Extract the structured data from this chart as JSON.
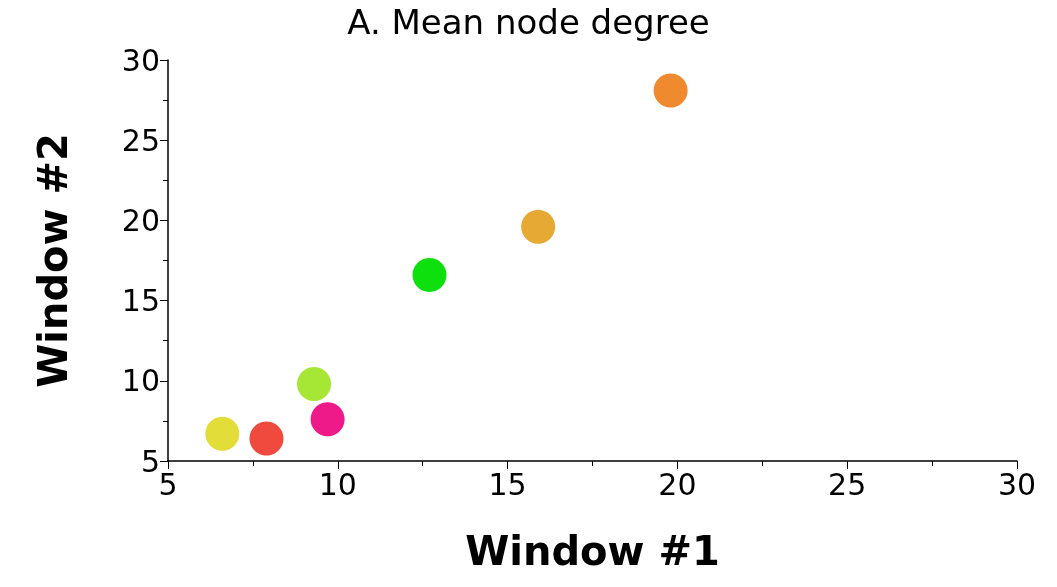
{
  "chart_data": {
    "type": "scatter",
    "title": "A. Mean node degree",
    "xlabel": "Window #1",
    "ylabel": "Window #2",
    "x": [
      6.6,
      7.9,
      9.3,
      9.7,
      12.7,
      15.9,
      19.8
    ],
    "values": [
      6.7,
      6.4,
      9.8,
      7.6,
      16.6,
      19.6,
      28.1
    ],
    "colors": [
      "#e3dd3a",
      "#f04a3e",
      "#a6e634",
      "#ee1a8a",
      "#0ee00e",
      "#e6a934",
      "#f08a2e"
    ],
    "xlim": [
      5,
      30
    ],
    "xticks": [
      5,
      10,
      15,
      20,
      25,
      30
    ],
    "ylim": [
      5,
      30
    ],
    "yticks": [
      5,
      10,
      15,
      20,
      25,
      30
    ],
    "grid": false,
    "marker": "circle"
  }
}
